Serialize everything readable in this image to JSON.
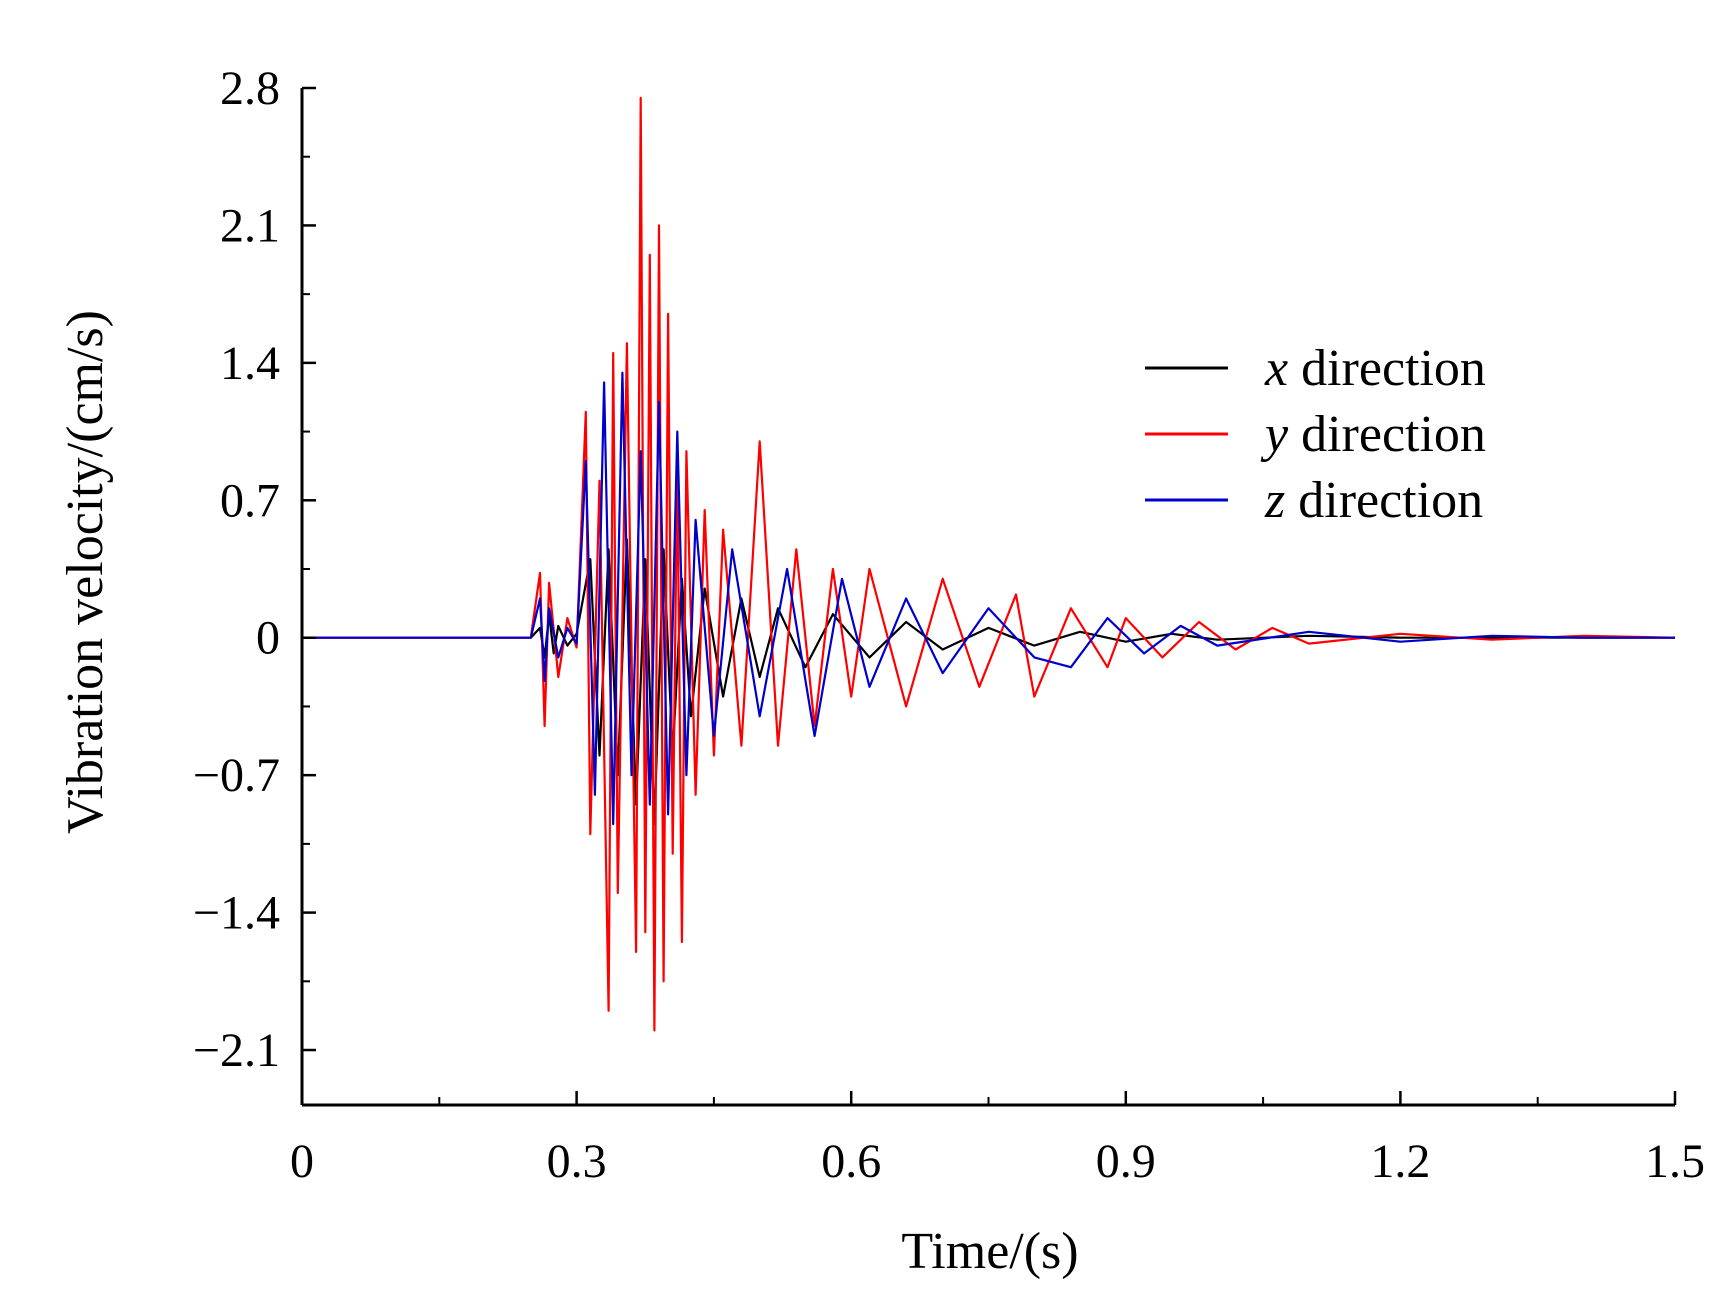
{
  "chart_data": {
    "type": "line",
    "title": "",
    "xlabel": "Time/(s)",
    "ylabel": "Vibration velocity/(cm/s)",
    "xlim": [
      0,
      1.5
    ],
    "ylim": [
      -2.38,
      2.8
    ],
    "xticks": [
      0,
      0.3,
      0.6,
      0.9,
      1.2,
      1.5
    ],
    "xtick_labels": [
      "0",
      "0.3",
      "0.6",
      "0.9",
      "1.2",
      "1.5"
    ],
    "yticks": [
      -2.1,
      -1.4,
      -0.7,
      0,
      0.7,
      1.4,
      2.1,
      2.8
    ],
    "ytick_labels": [
      "−2.1",
      "−1.4",
      "−0.7",
      "0",
      "0.7",
      "1.4",
      "2.1",
      "2.8"
    ],
    "grid": false,
    "legend_position": "top-right",
    "series": [
      {
        "name": "x direction",
        "var": "x",
        "label": "direction",
        "color": "#000000",
        "x": [
          0,
          0.25,
          0.26,
          0.265,
          0.27,
          0.275,
          0.28,
          0.29,
          0.3,
          0.315,
          0.325,
          0.335,
          0.345,
          0.355,
          0.365,
          0.375,
          0.385,
          0.395,
          0.405,
          0.415,
          0.425,
          0.44,
          0.46,
          0.48,
          0.5,
          0.52,
          0.55,
          0.58,
          0.62,
          0.66,
          0.7,
          0.75,
          0.8,
          0.85,
          0.9,
          0.95,
          1.0,
          1.1,
          1.2,
          1.3,
          1.4,
          1.5
        ],
        "values": [
          0,
          0,
          0.05,
          -0.1,
          0.12,
          -0.08,
          0.06,
          -0.04,
          0.02,
          0.4,
          -0.6,
          0.45,
          -0.7,
          0.5,
          -0.85,
          0.4,
          -0.95,
          0.45,
          -0.6,
          0.3,
          -0.4,
          0.25,
          -0.3,
          0.2,
          -0.2,
          0.15,
          -0.15,
          0.12,
          -0.1,
          0.08,
          -0.06,
          0.05,
          -0.04,
          0.03,
          -0.02,
          0.02,
          -0.01,
          0.01,
          0,
          0,
          0,
          0
        ]
      },
      {
        "name": "y direction",
        "var": "y",
        "label": "direction",
        "color": "#ff0000",
        "x": [
          0,
          0.25,
          0.26,
          0.265,
          0.27,
          0.28,
          0.29,
          0.3,
          0.31,
          0.315,
          0.325,
          0.335,
          0.34,
          0.345,
          0.355,
          0.365,
          0.37,
          0.375,
          0.38,
          0.385,
          0.39,
          0.395,
          0.4,
          0.405,
          0.41,
          0.415,
          0.42,
          0.43,
          0.44,
          0.45,
          0.46,
          0.48,
          0.5,
          0.52,
          0.54,
          0.56,
          0.58,
          0.6,
          0.62,
          0.66,
          0.7,
          0.74,
          0.78,
          0.8,
          0.84,
          0.88,
          0.9,
          0.94,
          0.98,
          1.02,
          1.06,
          1.1,
          1.2,
          1.3,
          1.4,
          1.5
        ],
        "values": [
          0,
          0,
          0.33,
          -0.45,
          0.28,
          -0.2,
          0.1,
          -0.05,
          1.15,
          -1.0,
          0.8,
          -1.9,
          1.45,
          -1.3,
          1.5,
          -1.6,
          2.75,
          -1.5,
          1.95,
          -2.0,
          2.1,
          -1.75,
          1.65,
          -1.1,
          0.9,
          -1.55,
          0.95,
          -0.8,
          0.65,
          -0.6,
          0.55,
          -0.55,
          1.0,
          -0.55,
          0.45,
          -0.45,
          0.35,
          -0.3,
          0.35,
          -0.35,
          0.3,
          -0.25,
          0.22,
          -0.3,
          0.15,
          -0.15,
          0.1,
          -0.1,
          0.08,
          -0.06,
          0.05,
          -0.03,
          0.02,
          -0.01,
          0.01,
          0
        ]
      },
      {
        "name": "z direction",
        "var": "z",
        "label": "direction",
        "color": "#0000cc",
        "x": [
          0,
          0.25,
          0.26,
          0.265,
          0.27,
          0.28,
          0.29,
          0.3,
          0.31,
          0.32,
          0.33,
          0.34,
          0.35,
          0.36,
          0.37,
          0.38,
          0.39,
          0.4,
          0.41,
          0.42,
          0.43,
          0.45,
          0.47,
          0.5,
          0.53,
          0.56,
          0.59,
          0.62,
          0.66,
          0.7,
          0.75,
          0.8,
          0.84,
          0.88,
          0.92,
          0.96,
          1.0,
          1.1,
          1.2,
          1.3,
          1.4,
          1.5
        ],
        "values": [
          0,
          0,
          0.2,
          -0.22,
          0.15,
          -0.1,
          0.05,
          -0.03,
          0.9,
          -0.8,
          1.3,
          -0.95,
          1.35,
          -0.7,
          0.95,
          -0.85,
          1.2,
          -0.9,
          1.05,
          -0.7,
          0.6,
          -0.5,
          0.45,
          -0.4,
          0.35,
          -0.5,
          0.3,
          -0.25,
          0.2,
          -0.18,
          0.15,
          -0.1,
          -0.15,
          0.1,
          -0.08,
          0.06,
          -0.04,
          0.03,
          -0.02,
          0.01,
          0,
          0
        ]
      }
    ]
  }
}
